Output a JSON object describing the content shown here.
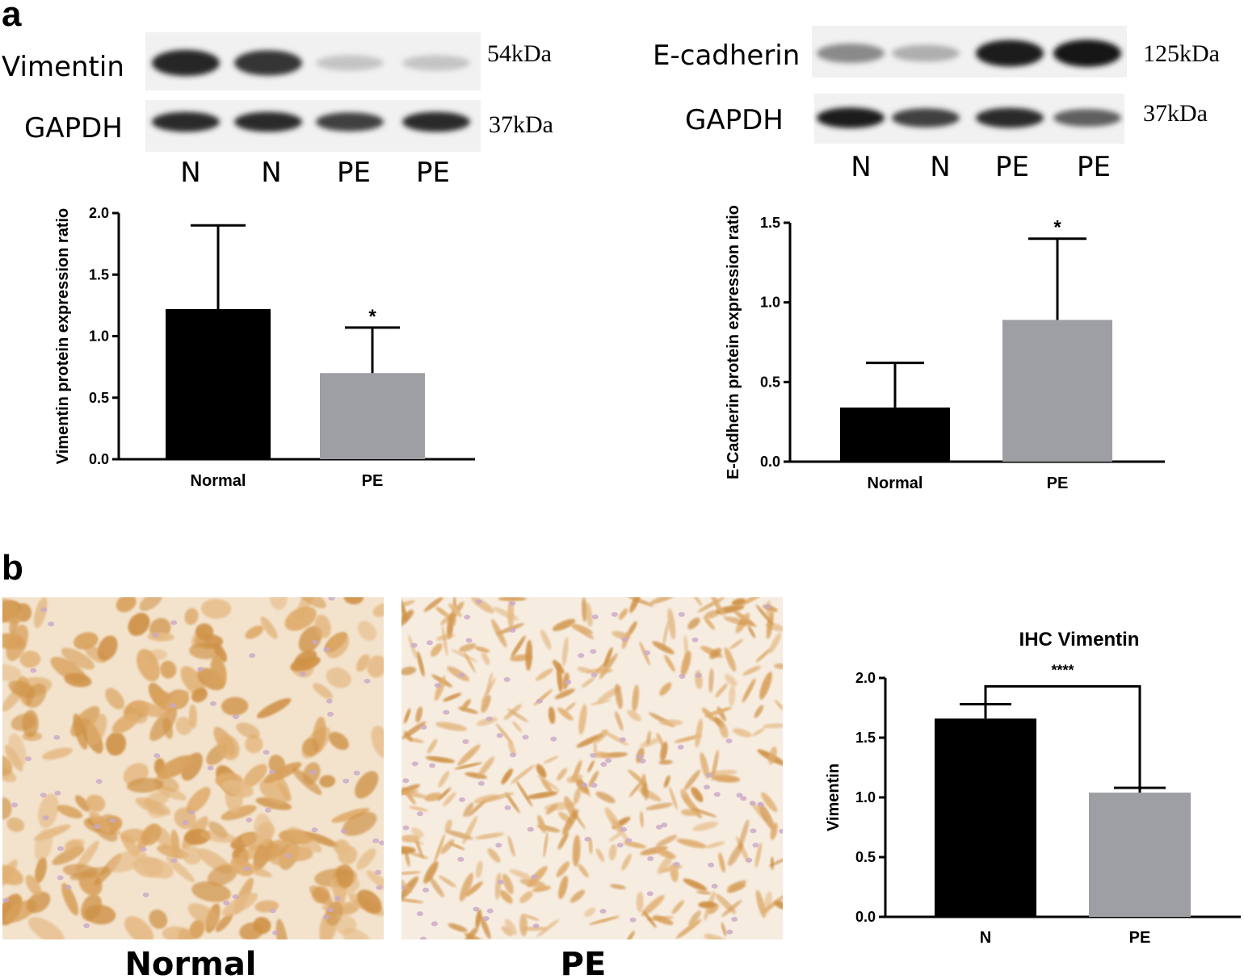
{
  "panels": {
    "a": "a",
    "b": "b"
  },
  "blots": [
    {
      "protein_label": "Vimentin",
      "protein_kda": "54kDa",
      "control_label": "GAPDH",
      "control_kda": "37kDa",
      "lanes": [
        "N",
        "N",
        "PE",
        "PE"
      ],
      "protein_intensity": [
        0.92,
        0.85,
        0.18,
        0.18
      ],
      "control_intensity": [
        0.9,
        0.9,
        0.8,
        0.9
      ]
    },
    {
      "protein_label": "E-cadherin",
      "protein_kda": "125kDa",
      "control_label": "GAPDH",
      "control_kda": "37kDa",
      "lanes": [
        "N",
        "N",
        "PE",
        "PE"
      ],
      "protein_intensity": [
        0.45,
        0.28,
        0.95,
        0.98
      ],
      "control_intensity": [
        0.95,
        0.8,
        0.9,
        0.65
      ]
    }
  ],
  "micrographs": {
    "normal_label": "Normal",
    "pe_label": "PE"
  },
  "colors": {
    "normal": "#000000",
    "pe": "#9e9fa3",
    "stain": "#d4a060",
    "nuclei": "#c9a8c8"
  },
  "chart_data": [
    {
      "type": "bar",
      "title": "",
      "xlabel": "",
      "ylabel": "Vimentin protein expression ratio",
      "categories": [
        "Normal",
        "PE"
      ],
      "values": [
        1.22,
        0.7
      ],
      "errors": [
        0.68,
        0.37
      ],
      "significance": [
        "",
        "*"
      ],
      "ylim": [
        0,
        2.0
      ],
      "yticks": [
        "0.0",
        "0.5",
        "1.0",
        "1.5",
        "2.0"
      ],
      "grid": false,
      "legend": "none"
    },
    {
      "type": "bar",
      "title": "",
      "xlabel": "",
      "ylabel": "E-Cadherin protein expression ratio",
      "categories": [
        "Normal",
        "PE"
      ],
      "values": [
        0.34,
        0.89
      ],
      "errors": [
        0.28,
        0.51
      ],
      "significance": [
        "",
        "*"
      ],
      "ylim": [
        0,
        1.5
      ],
      "yticks": [
        "0.0",
        "0.5",
        "1.0",
        "1.5"
      ],
      "grid": false,
      "legend": "none"
    },
    {
      "type": "bar",
      "title": "IHC Vimentin",
      "xlabel": "",
      "ylabel": "Vimentin",
      "categories": [
        "N",
        "PE"
      ],
      "values": [
        1.66,
        1.04
      ],
      "errors": [
        0.12,
        0.04
      ],
      "comparison": "****",
      "ylim": [
        0,
        2.0
      ],
      "yticks": [
        "0.0",
        "0.5",
        "1.0",
        "1.5",
        "2.0"
      ],
      "grid": false,
      "legend": "none"
    }
  ]
}
